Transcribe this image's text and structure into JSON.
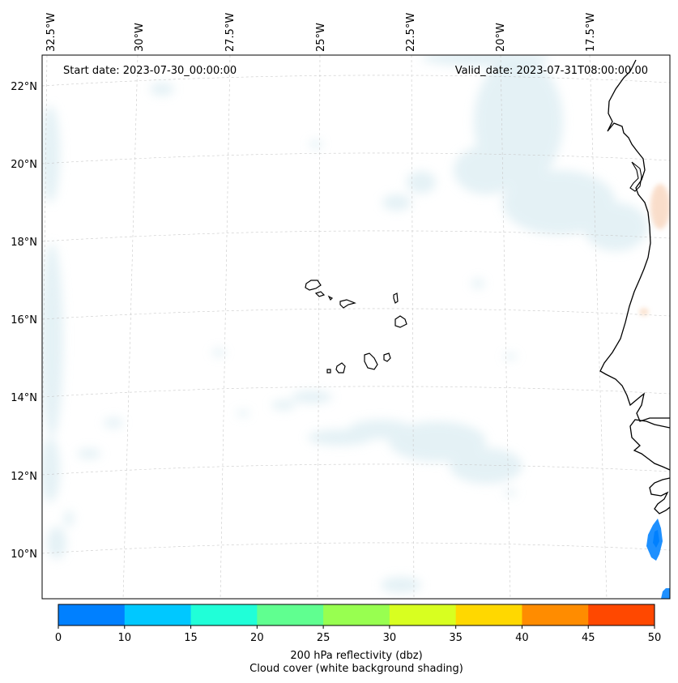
{
  "header": {
    "start_date": "Start date: 2023-07-30_00:00:00",
    "valid_date": "Valid_date: 2023-07-31T08:00:00.00"
  },
  "axes": {
    "lon_labels": [
      "32.5°W",
      "30°W",
      "27.5°W",
      "25°W",
      "22.5°W",
      "20°W",
      "17.5°W"
    ],
    "lat_labels": [
      "22°N",
      "20°N",
      "18°N",
      "16°N",
      "14°N",
      "12°N",
      "10°N"
    ]
  },
  "colorbar": {
    "ticks": [
      "0",
      "10",
      "15",
      "20",
      "25",
      "30",
      "35",
      "40",
      "45",
      "50"
    ],
    "colors": [
      "#0080ff",
      "#00c8ff",
      "#20ffd8",
      "#60ff90",
      "#98ff50",
      "#d8ff20",
      "#ffd800",
      "#ff8c00",
      "#ff4800"
    ],
    "label_line1": "200 hPa reflectivity (dbz)",
    "label_line2": "Cloud cover (white background shading)"
  }
}
